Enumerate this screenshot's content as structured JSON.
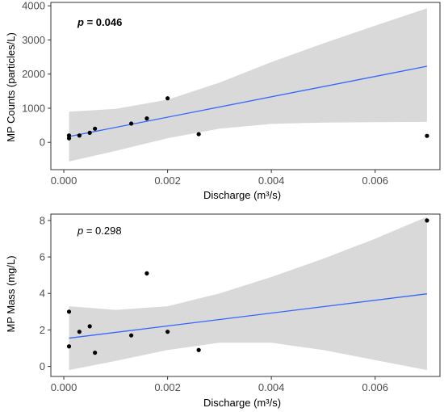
{
  "chart_data": [
    {
      "type": "scatter",
      "xlabel": "Discharge (m³/s)",
      "ylabel": "MP Counts (particles/L)",
      "xlim": [
        -0.00025,
        0.00725
      ],
      "ylim": [
        -800,
        4100
      ],
      "xticks": [
        0,
        0.002,
        0.004,
        0.006
      ],
      "xtick_labels": [
        "0.000",
        "0.002",
        "0.004",
        "0.006"
      ],
      "yticks": [
        0,
        1000,
        2000,
        3000,
        4000
      ],
      "ytick_labels": [
        "0",
        "1000",
        "2000",
        "3000",
        "4000"
      ],
      "annotation": {
        "p_label": "p",
        "p_value": " = 0.046",
        "bold": true
      },
      "points": [
        {
          "x": 0.0001,
          "y": 200
        },
        {
          "x": 0.0001,
          "y": 120
        },
        {
          "x": 0.0003,
          "y": 200
        },
        {
          "x": 0.0005,
          "y": 280
        },
        {
          "x": 0.0006,
          "y": 400
        },
        {
          "x": 0.0013,
          "y": 550
        },
        {
          "x": 0.0016,
          "y": 700
        },
        {
          "x": 0.002,
          "y": 1290
        },
        {
          "x": 0.0026,
          "y": 240
        },
        {
          "x": 0.007,
          "y": 190
        }
      ],
      "fit_line": {
        "x": [
          0.0001,
          0.007
        ],
        "y": [
          170,
          2230
        ]
      },
      "ci_band": {
        "x": [
          0.0001,
          0.001,
          0.002,
          0.003,
          0.004,
          0.005,
          0.006,
          0.007
        ],
        "upper": [
          900,
          980,
          1250,
          1750,
          2350,
          2900,
          3420,
          3930
        ],
        "lower": [
          -560,
          -250,
          120,
          400,
          540,
          580,
          590,
          600
        ]
      },
      "colors": {
        "points": "#000000",
        "line": "#3366ff",
        "band": "#d9d9d9"
      },
      "grid": false
    },
    {
      "type": "scatter",
      "xlabel": "Discharge (m³/s)",
      "ylabel": "MP Mass (mg/L)",
      "xlim": [
        -0.00025,
        0.00725
      ],
      "ylim": [
        -0.55,
        8.35
      ],
      "xticks": [
        0,
        0.002,
        0.004,
        0.006
      ],
      "xtick_labels": [
        "0.000",
        "0.002",
        "0.004",
        "0.006"
      ],
      "yticks": [
        0,
        2,
        4,
        6,
        8
      ],
      "ytick_labels": [
        "0",
        "2",
        "4",
        "6",
        "8"
      ],
      "annotation": {
        "p_label": "p",
        "p_value": " = 0.298",
        "bold": false
      },
      "points": [
        {
          "x": 0.0001,
          "y": 3.0
        },
        {
          "x": 0.0001,
          "y": 1.1
        },
        {
          "x": 0.0003,
          "y": 1.9
        },
        {
          "x": 0.0005,
          "y": 2.2
        },
        {
          "x": 0.0006,
          "y": 0.75
        },
        {
          "x": 0.0013,
          "y": 1.7
        },
        {
          "x": 0.0016,
          "y": 5.1
        },
        {
          "x": 0.002,
          "y": 1.9
        },
        {
          "x": 0.0026,
          "y": 0.9
        },
        {
          "x": 0.007,
          "y": 8.0
        }
      ],
      "fit_line": {
        "x": [
          0.0001,
          0.007
        ],
        "y": [
          1.55,
          3.98
        ]
      },
      "ci_band": {
        "x": [
          0.0001,
          0.001,
          0.002,
          0.003,
          0.004,
          0.005,
          0.006,
          0.007
        ],
        "upper": [
          3.3,
          3.1,
          3.3,
          4.0,
          4.9,
          5.9,
          7.0,
          8.2
        ],
        "lower": [
          -0.2,
          0.3,
          0.9,
          1.3,
          1.3,
          0.9,
          0.35,
          -0.2
        ]
      },
      "colors": {
        "points": "#000000",
        "line": "#3366ff",
        "band": "#d9d9d9"
      },
      "grid": false
    }
  ]
}
